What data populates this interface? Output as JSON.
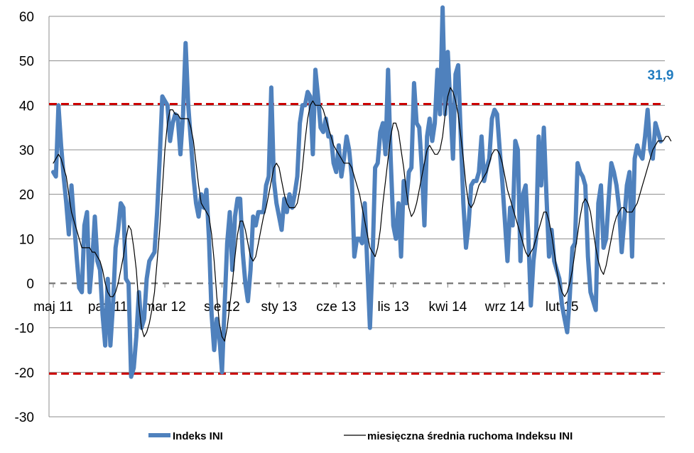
{
  "chart_data": {
    "type": "line",
    "ylim": [
      -30,
      60
    ],
    "yticks": [
      60,
      50,
      40,
      30,
      20,
      10,
      0,
      -10,
      -20,
      -30
    ],
    "x_tick_labels": [
      "maj 11",
      "paź 11",
      "mar 12",
      "sie 12",
      "sty 13",
      "cze 13",
      "lis 13",
      "kwi 14",
      "wrz 14",
      "lut 15"
    ],
    "x_tick_index": [
      0,
      21,
      43,
      65,
      87,
      109,
      131,
      152,
      174,
      196
    ],
    "grid": true,
    "legend_position": "bottom",
    "reference_lines": [
      {
        "value": 40.3,
        "color": "#cc0000",
        "style": "dashed"
      },
      {
        "value": -20.3,
        "color": "#cc0000",
        "style": "dashed"
      },
      {
        "value": 0,
        "color": "#808080",
        "style": "dashed"
      }
    ],
    "callout": {
      "text": "31,9",
      "color": "#1f7bbf"
    },
    "series": [
      {
        "name": "Indeks INI",
        "color": "#4f81bd",
        "values": [
          25,
          24,
          40,
          31,
          24,
          18,
          11,
          22,
          14,
          6,
          -1,
          -2,
          13,
          16,
          -2,
          5,
          15,
          5,
          3,
          -7,
          -14,
          1,
          -14,
          -5,
          8,
          12,
          18,
          17,
          1,
          0,
          -21,
          -19,
          -12,
          -2,
          -10,
          -8,
          1,
          5,
          6,
          7,
          16,
          28,
          42,
          41,
          40,
          32,
          36,
          38,
          37,
          29,
          38,
          54,
          40,
          32,
          24,
          18,
          15,
          20,
          17,
          21,
          10,
          -7,
          -15,
          -8,
          -12,
          -20,
          -5,
          9,
          16,
          3,
          15,
          19,
          19,
          7,
          0,
          -4,
          3,
          15,
          13,
          16,
          16,
          16,
          22,
          24,
          44,
          23,
          18,
          15,
          12,
          19,
          16,
          20,
          17,
          20,
          24,
          36,
          40,
          40,
          43,
          42,
          29,
          48,
          42,
          35,
          34,
          37,
          33,
          33,
          27,
          25,
          31,
          24,
          28,
          33,
          30,
          24,
          6,
          10,
          10,
          9,
          18,
          4,
          -10,
          5,
          26,
          27,
          34,
          36,
          29,
          48,
          28,
          13,
          10,
          18,
          6,
          23,
          18,
          25,
          26,
          45,
          36,
          35,
          26,
          13,
          33,
          37,
          32,
          36,
          48,
          38,
          62,
          38,
          52,
          40,
          28,
          47,
          49,
          33,
          18,
          8,
          13,
          22,
          23,
          23,
          25,
          33,
          23,
          26,
          28,
          37,
          39,
          38,
          30,
          23,
          14,
          5,
          17,
          13,
          32,
          30,
          5,
          20,
          22,
          11,
          -5,
          5,
          10,
          33,
          22,
          35,
          20,
          6,
          12,
          5,
          3,
          1,
          -5,
          -8,
          -11,
          -3,
          8,
          9,
          27,
          25,
          24,
          22,
          6,
          -2,
          -4,
          -6,
          18,
          22,
          8,
          10,
          19,
          27,
          25,
          22,
          17,
          7,
          14,
          22,
          25,
          6,
          28,
          31,
          29,
          28,
          33,
          39,
          30,
          28,
          36,
          34,
          31.9
        ]
      },
      {
        "name": "miesięczna średnia ruchoma Indeksu INI",
        "color": "#000000",
        "values": [
          27,
          28,
          29,
          28,
          26,
          24,
          20,
          16,
          14,
          12,
          10,
          8,
          8,
          8,
          8,
          7,
          7,
          6,
          5,
          3,
          0,
          -2,
          -3,
          -3,
          -2,
          0,
          3,
          6,
          10,
          13,
          12,
          8,
          3,
          -5,
          -10,
          -12,
          -11,
          -9,
          -6,
          -2,
          5,
          12,
          21,
          30,
          36,
          39,
          39,
          38,
          38,
          37,
          37,
          37,
          37,
          35,
          32,
          27,
          22,
          18,
          17,
          16,
          15,
          11,
          5,
          -3,
          -9,
          -12,
          -13,
          -10,
          -5,
          0,
          6,
          11,
          14,
          14,
          12,
          9,
          6,
          5,
          6,
          9,
          12,
          15,
          17,
          20,
          23,
          26,
          27,
          26,
          23,
          20,
          18,
          17,
          17,
          17,
          18,
          21,
          26,
          32,
          37,
          40,
          41,
          40,
          40,
          40,
          39,
          37,
          35,
          33,
          31,
          30,
          29,
          28,
          27,
          27,
          27,
          26,
          24,
          22,
          20,
          17,
          14,
          11,
          8,
          7,
          6,
          8,
          12,
          18,
          23,
          28,
          33,
          36,
          36,
          34,
          30,
          26,
          21,
          17,
          15,
          16,
          18,
          21,
          24,
          27,
          30,
          31,
          30,
          29,
          29,
          30,
          33,
          38,
          42,
          44,
          43,
          41,
          38,
          33,
          28,
          22,
          18,
          17,
          18,
          20,
          22,
          23,
          24,
          25,
          27,
          29,
          30,
          30,
          29,
          27,
          24,
          21,
          19,
          17,
          15,
          13,
          11,
          9,
          7,
          6,
          7,
          8,
          10,
          12,
          14,
          16,
          16,
          14,
          11,
          7,
          3,
          0,
          -2,
          -3,
          -2,
          0,
          3,
          7,
          11,
          15,
          18,
          19,
          18,
          16,
          12,
          8,
          5,
          3,
          2,
          4,
          7,
          10,
          13,
          15,
          16,
          17,
          17,
          16,
          16,
          16,
          17,
          18,
          20,
          22,
          24,
          26,
          28,
          30,
          31,
          32,
          32,
          32,
          33,
          33,
          32
        ]
      }
    ]
  },
  "legend": {
    "series1": "Indeks INI",
    "series2": "miesięczna średnia ruchoma Indeksu INI"
  }
}
